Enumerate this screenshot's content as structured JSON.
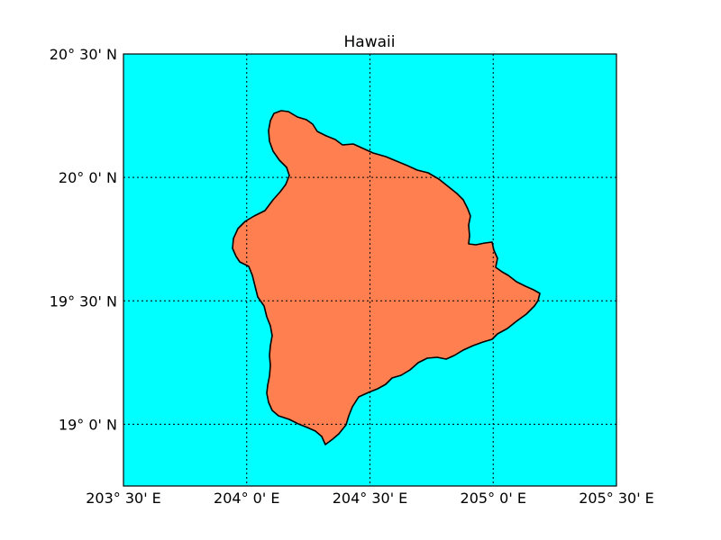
{
  "map": {
    "title": "Hawaii",
    "ocean_color": "#00ffff",
    "land_color": "#ff7f50",
    "coast_color": "#000000",
    "lon_range": [
      203.5,
      205.5
    ],
    "lat_range": [
      18.75,
      20.5
    ],
    "lon_ticks": [
      {
        "value": 203.5,
        "label": "203° 30' E"
      },
      {
        "value": 204.0,
        "label": "204° 0' E"
      },
      {
        "value": 204.5,
        "label": "204° 30' E"
      },
      {
        "value": 205.0,
        "label": "205° 0' E"
      },
      {
        "value": 205.5,
        "label": "205° 30' E"
      }
    ],
    "lat_ticks": [
      {
        "value": 20.5,
        "label": "20° 30' N"
      },
      {
        "value": 20.0,
        "label": "20° 0' N"
      },
      {
        "value": 19.5,
        "label": "19° 30' N"
      },
      {
        "value": 19.0,
        "label": "19° 0' N"
      }
    ]
  }
}
